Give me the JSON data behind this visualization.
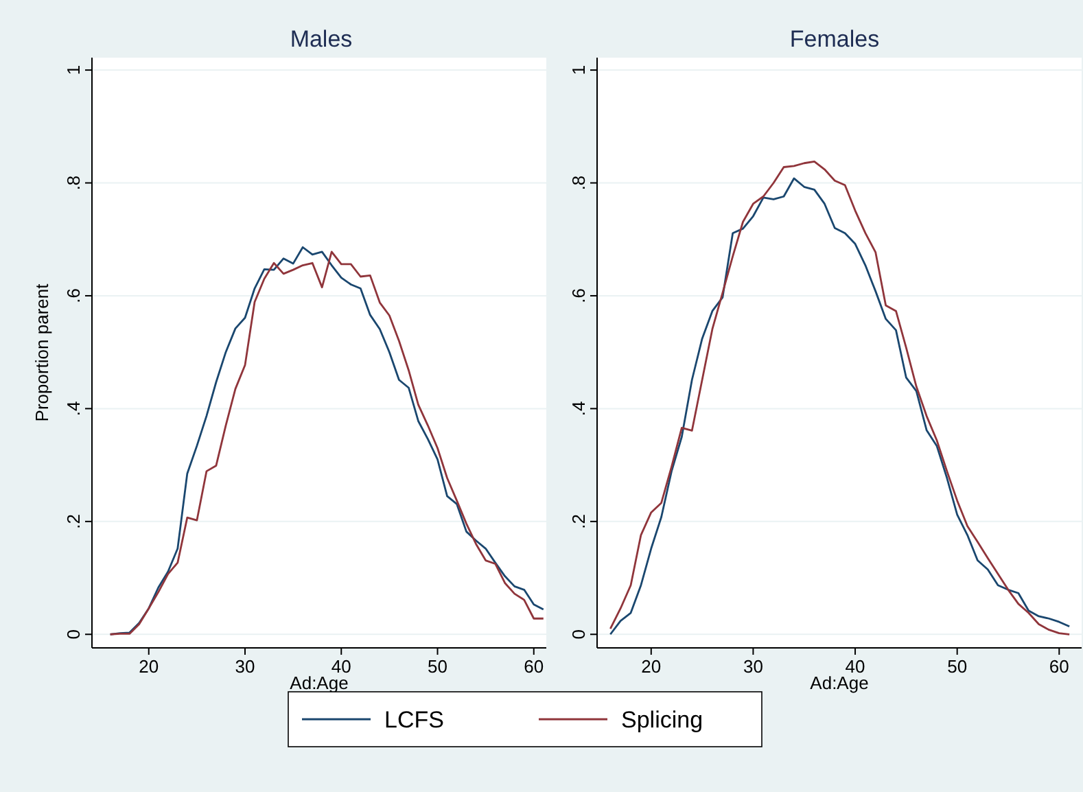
{
  "chart_data": [
    {
      "type": "line",
      "title": "Males",
      "xlabel": "Ad:Age",
      "ylabel": "Proportion parent",
      "xlim": [
        14.1,
        61.3
      ],
      "xticks": [
        20,
        30,
        40,
        50,
        60
      ],
      "ylim": [
        -0.024,
        1.022
      ],
      "yticks": [
        {
          "value": 0,
          "label": "0"
        },
        {
          "value": 0.2,
          "label": ".2"
        },
        {
          "value": 0.4,
          "label": ".4"
        },
        {
          "value": 0.6,
          "label": ".6"
        },
        {
          "value": 0.8,
          "label": ".8"
        },
        {
          "value": 1,
          "label": "1"
        }
      ],
      "grid": "y",
      "legend": "bottom",
      "line_style": "solid",
      "x": [
        16,
        17,
        18,
        19,
        20,
        21,
        22,
        23,
        24,
        25,
        26,
        27,
        28,
        29,
        30,
        31,
        32,
        33,
        34,
        35,
        36,
        37,
        38,
        39,
        40,
        41,
        42,
        43,
        44,
        45,
        46,
        47,
        48,
        49,
        50,
        51,
        52,
        53,
        54,
        55,
        56,
        57,
        58,
        59,
        60,
        61
      ],
      "series": [
        {
          "name": "LCFS",
          "color": "#1a476f",
          "values": [
            0,
            0.002,
            0.003,
            0.02,
            0.046,
            0.083,
            0.111,
            0.152,
            0.285,
            0.334,
            0.387,
            0.447,
            0.5,
            0.542,
            0.561,
            0.613,
            0.647,
            0.646,
            0.666,
            0.657,
            0.686,
            0.673,
            0.678,
            0.654,
            0.632,
            0.62,
            0.613,
            0.566,
            0.541,
            0.5,
            0.451,
            0.437,
            0.378,
            0.346,
            0.31,
            0.245,
            0.231,
            0.182,
            0.166,
            0.152,
            0.127,
            0.103,
            0.085,
            0.079,
            0.053,
            0.044
          ]
        },
        {
          "name": "Splicing",
          "color": "#90353b",
          "values": [
            0,
            0.001,
            0.001,
            0.018,
            0.046,
            0.075,
            0.107,
            0.127,
            0.207,
            0.202,
            0.289,
            0.299,
            0.37,
            0.435,
            0.477,
            0.589,
            0.63,
            0.658,
            0.639,
            0.646,
            0.654,
            0.658,
            0.615,
            0.678,
            0.656,
            0.656,
            0.634,
            0.636,
            0.588,
            0.565,
            0.52,
            0.468,
            0.407,
            0.37,
            0.33,
            0.277,
            0.237,
            0.196,
            0.16,
            0.131,
            0.125,
            0.091,
            0.072,
            0.061,
            0.028,
            0.028
          ]
        }
      ]
    },
    {
      "type": "line",
      "title": "Females",
      "xlabel": "Ad:Age",
      "xlim": [
        14.7,
        62.2
      ],
      "xticks": [
        20,
        30,
        40,
        50,
        60
      ],
      "ylim": [
        -0.024,
        1.022
      ],
      "yticks": [
        {
          "value": 0,
          "label": "0"
        },
        {
          "value": 0.2,
          "label": ".2"
        },
        {
          "value": 0.4,
          "label": ".4"
        },
        {
          "value": 0.6,
          "label": ".6"
        },
        {
          "value": 0.8,
          "label": ".8"
        },
        {
          "value": 1,
          "label": "1"
        }
      ],
      "grid": "y",
      "legend": "bottom",
      "line_style": "solid",
      "x": [
        16,
        17,
        18,
        19,
        20,
        21,
        22,
        23,
        24,
        25,
        26,
        27,
        28,
        29,
        30,
        31,
        32,
        33,
        34,
        35,
        36,
        37,
        38,
        39,
        40,
        41,
        42,
        43,
        44,
        45,
        46,
        47,
        48,
        49,
        50,
        51,
        52,
        53,
        54,
        55,
        56,
        57,
        58,
        59,
        60,
        61
      ],
      "series": [
        {
          "name": "LCFS",
          "color": "#1a476f",
          "values": [
            0,
            0.024,
            0.038,
            0.087,
            0.152,
            0.208,
            0.289,
            0.35,
            0.451,
            0.524,
            0.573,
            0.597,
            0.711,
            0.719,
            0.741,
            0.774,
            0.771,
            0.776,
            0.808,
            0.793,
            0.788,
            0.763,
            0.72,
            0.711,
            0.692,
            0.654,
            0.608,
            0.559,
            0.539,
            0.455,
            0.431,
            0.362,
            0.334,
            0.277,
            0.212,
            0.176,
            0.131,
            0.115,
            0.087,
            0.079,
            0.073,
            0.042,
            0.032,
            0.028,
            0.022,
            0.014
          ]
        },
        {
          "name": "Splicing",
          "color": "#90353b",
          "values": [
            0.01,
            0.046,
            0.087,
            0.176,
            0.216,
            0.233,
            0.297,
            0.366,
            0.361,
            0.451,
            0.541,
            0.605,
            0.67,
            0.731,
            0.763,
            0.776,
            0.8,
            0.828,
            0.83,
            0.835,
            0.838,
            0.824,
            0.804,
            0.796,
            0.751,
            0.711,
            0.677,
            0.583,
            0.573,
            0.508,
            0.439,
            0.387,
            0.344,
            0.289,
            0.237,
            0.192,
            0.164,
            0.135,
            0.107,
            0.079,
            0.054,
            0.038,
            0.018,
            0.008,
            0.002,
            0
          ]
        }
      ]
    }
  ]
}
